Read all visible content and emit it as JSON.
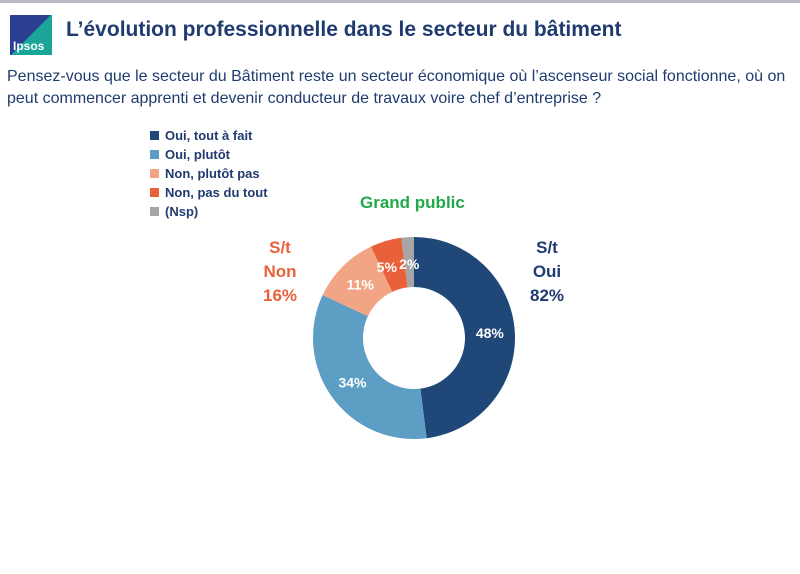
{
  "header": {
    "logo_text": "Ipsos",
    "title": "L’évolution professionnelle dans le secteur du bâtiment"
  },
  "question": "Pensez-vous que le secteur du Bâtiment reste un secteur économique où l’ascenseur social fonctionne, où on peut commencer apprenti et devenir conducteur de travaux voire chef d’entreprise ?",
  "chart_data": {
    "type": "pie",
    "donut": true,
    "title": "Grand public",
    "categories": [
      "Oui, tout à fait",
      "Oui, plutôt",
      "Non, plutôt pas",
      "Non, pas du tout",
      "(Nsp)"
    ],
    "values": [
      48,
      34,
      11,
      5,
      2
    ],
    "labels": [
      "48%",
      "34%",
      "11%",
      "5%",
      "2%"
    ],
    "colors": [
      "#1f4778",
      "#5d9ec5",
      "#f1a585",
      "#e8613a",
      "#a6a6a6"
    ],
    "legend_position": "top-left",
    "annotations": {
      "non": {
        "l1": "S/t",
        "l2": "Non",
        "l3": "16%"
      },
      "oui": {
        "l1": "S/t",
        "l2": "Oui",
        "l3": "82%"
      }
    }
  }
}
